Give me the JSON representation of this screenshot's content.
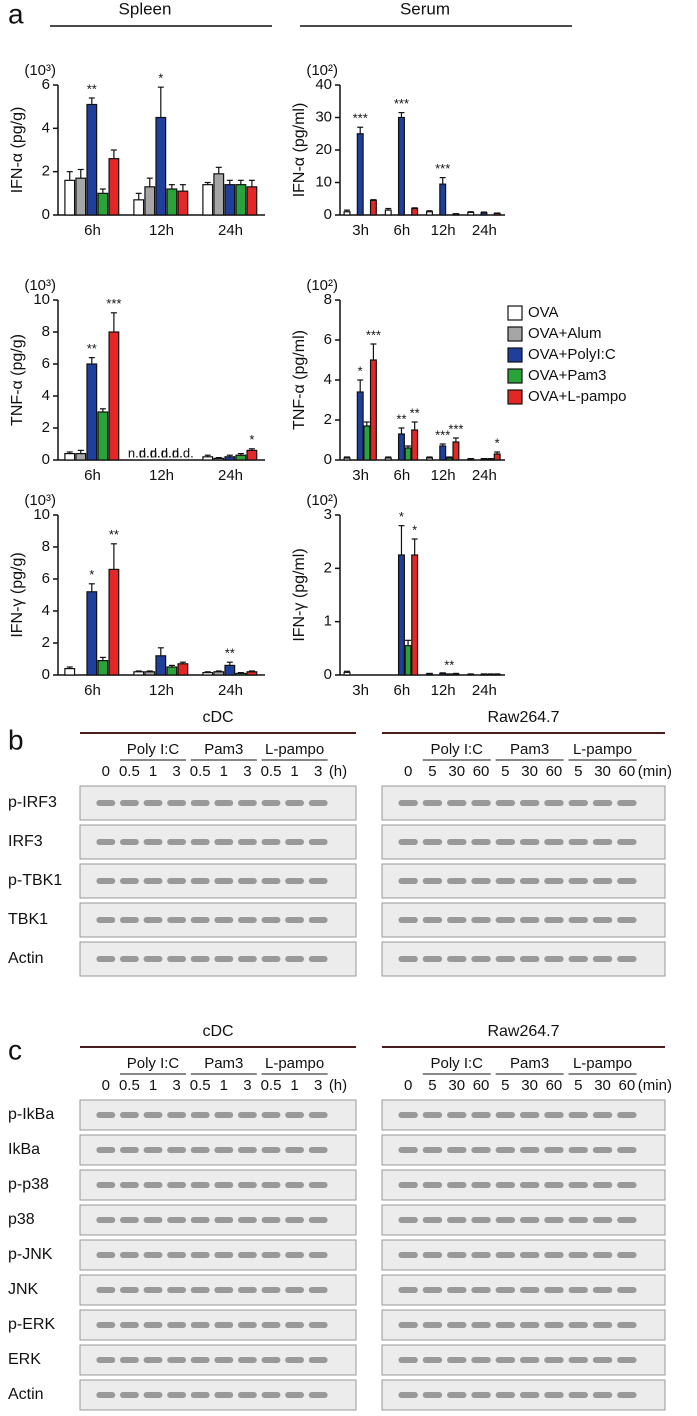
{
  "panel_labels": {
    "a": "a",
    "b": "b",
    "c": "c"
  },
  "headers": {
    "spleen": "Spleen",
    "serum": "Serum"
  },
  "chart_data": [
    {
      "type": "bar",
      "ylabel": "IFN-α (pg/g)",
      "multiplier": "(10³)",
      "categories": [
        "6h",
        "12h",
        "24h"
      ],
      "ylim": [
        0,
        6
      ],
      "yticks": [
        0,
        2,
        4,
        6
      ],
      "series": [
        {
          "name": "OVA",
          "color": "#ffffff",
          "values": [
            1.6,
            0.7,
            1.4
          ],
          "errors": [
            0.4,
            0.3,
            0.1
          ]
        },
        {
          "name": "OVA+Alum",
          "color": "#a6a6a6",
          "values": [
            1.7,
            1.3,
            1.9
          ],
          "errors": [
            0.4,
            0.4,
            0.3
          ]
        },
        {
          "name": "OVA+PolyI:C",
          "color": "#1f3f9a",
          "values": [
            5.1,
            4.5,
            1.4
          ],
          "errors": [
            0.3,
            1.4,
            0.2
          ]
        },
        {
          "name": "OVA+Pam3",
          "color": "#2aa33a",
          "values": [
            1.0,
            1.2,
            1.4
          ],
          "errors": [
            0.2,
            0.2,
            0.2
          ]
        },
        {
          "name": "OVA+L-pampo",
          "color": "#e32626",
          "values": [
            2.6,
            1.1,
            1.3
          ],
          "errors": [
            0.4,
            0.3,
            0.3
          ]
        }
      ],
      "annotations": [
        {
          "text": "**",
          "category": 0,
          "series": 2
        },
        {
          "text": "*",
          "category": 1,
          "series": 2
        }
      ]
    },
    {
      "type": "bar",
      "ylabel": "IFN-α (pg/ml)",
      "multiplier": "(10²)",
      "categories": [
        "3h",
        "6h",
        "12h",
        "24h"
      ],
      "ylim": [
        0,
        40
      ],
      "yticks": [
        0,
        10,
        20,
        30,
        40
      ],
      "series": [
        {
          "name": "OVA",
          "color": "#ffffff",
          "values": [
            1.0,
            1.5,
            1.0,
            0.8
          ],
          "errors": [
            0.5,
            0.5,
            0.3,
            0.2
          ]
        },
        {
          "name": "OVA+Alum",
          "color": "#a6a6a6",
          "values": [
            null,
            null,
            null,
            null
          ],
          "errors": [
            null,
            null,
            null,
            null
          ]
        },
        {
          "name": "OVA+PolyI:C",
          "color": "#1f3f9a",
          "values": [
            25,
            30,
            9.5,
            0.7
          ],
          "errors": [
            2,
            1.5,
            2,
            0.2
          ]
        },
        {
          "name": "OVA+Pam3",
          "color": "#2aa33a",
          "values": [
            null,
            null,
            null,
            null
          ],
          "errors": [
            null,
            null,
            null,
            null
          ]
        },
        {
          "name": "OVA+L-pampo",
          "color": "#e32626",
          "values": [
            4.5,
            2.0,
            0.3,
            0.5
          ],
          "errors": [
            0.2,
            0.2,
            0.1,
            0.1
          ]
        }
      ],
      "annotations": [
        {
          "text": "***",
          "category": 0,
          "series": 2
        },
        {
          "text": "***",
          "category": 1,
          "series": 2
        },
        {
          "text": "***",
          "category": 2,
          "series": 2
        }
      ]
    },
    {
      "type": "bar",
      "ylabel": "TNF-α (pg/g)",
      "multiplier": "(10³)",
      "categories": [
        "6h",
        "12h",
        "24h"
      ],
      "ylim": [
        0,
        10
      ],
      "yticks": [
        0,
        2,
        4,
        6,
        8,
        10
      ],
      "series": [
        {
          "name": "OVA",
          "color": "#ffffff",
          "values": [
            0.4,
            null,
            0.2
          ],
          "errors": [
            0.1,
            null,
            0.1
          ]
        },
        {
          "name": "OVA+Alum",
          "color": "#a6a6a6",
          "values": [
            0.4,
            null,
            0.1
          ],
          "errors": [
            0.2,
            null,
            0.05
          ]
        },
        {
          "name": "OVA+PolyI:C",
          "color": "#1f3f9a",
          "values": [
            6.0,
            null,
            0.2
          ],
          "errors": [
            0.4,
            null,
            0.1
          ]
        },
        {
          "name": "OVA+Pam3",
          "color": "#2aa33a",
          "values": [
            3.0,
            null,
            0.3
          ],
          "errors": [
            0.2,
            null,
            0.1
          ]
        },
        {
          "name": "OVA+L-pampo",
          "color": "#e32626",
          "values": [
            8.0,
            null,
            0.6
          ],
          "errors": [
            1.2,
            null,
            0.1
          ]
        }
      ],
      "annotations": [
        {
          "text": "**",
          "category": 0,
          "series": 2
        },
        {
          "text": "***",
          "category": 0,
          "series": 4
        },
        {
          "text": "n.d.",
          "category": 1,
          "series": 0
        },
        {
          "text": "n.d.",
          "category": 1,
          "series": 1
        },
        {
          "text": "n.d.",
          "category": 1,
          "series": 2
        },
        {
          "text": "n.d.",
          "category": 1,
          "series": 3
        },
        {
          "text": "n.d.",
          "category": 1,
          "series": 4
        },
        {
          "text": "*",
          "category": 2,
          "series": 4
        }
      ]
    },
    {
      "type": "bar",
      "ylabel": "TNF-α (pg/ml)",
      "multiplier": "(10²)",
      "categories": [
        "3h",
        "6h",
        "12h",
        "24h"
      ],
      "ylim": [
        0,
        8
      ],
      "yticks": [
        0,
        2,
        4,
        6,
        8
      ],
      "legend": "right",
      "series": [
        {
          "name": "OVA",
          "color": "#ffffff",
          "values": [
            0.1,
            0.1,
            0.1,
            0.05
          ],
          "errors": [
            0.05,
            0.05,
            0.05,
            0.02
          ]
        },
        {
          "name": "OVA+Alum",
          "color": "#a6a6a6",
          "values": [
            null,
            null,
            null,
            null
          ],
          "errors": [
            null,
            null,
            null,
            null
          ]
        },
        {
          "name": "OVA+PolyI:C",
          "color": "#1f3f9a",
          "values": [
            3.4,
            1.3,
            0.7,
            0.05
          ],
          "errors": [
            0.6,
            0.3,
            0.1,
            0.02
          ]
        },
        {
          "name": "OVA+Pam3",
          "color": "#2aa33a",
          "values": [
            1.7,
            0.6,
            0.1,
            0.05
          ],
          "errors": [
            0.2,
            0.1,
            0.05,
            0.02
          ]
        },
        {
          "name": "OVA+L-pampo",
          "color": "#e32626",
          "values": [
            5.0,
            1.5,
            0.9,
            0.3
          ],
          "errors": [
            0.8,
            0.4,
            0.2,
            0.1
          ]
        }
      ],
      "annotations": [
        {
          "text": "*",
          "category": 0,
          "series": 2
        },
        {
          "text": "***",
          "category": 0,
          "series": 4
        },
        {
          "text": "**",
          "category": 1,
          "series": 2
        },
        {
          "text": "**",
          "category": 1,
          "series": 4
        },
        {
          "text": "***",
          "category": 2,
          "series": 2
        },
        {
          "text": "***",
          "category": 2,
          "series": 4
        },
        {
          "text": "*",
          "category": 3,
          "series": 4
        }
      ]
    },
    {
      "type": "bar",
      "ylabel": "IFN-γ (pg/g)",
      "multiplier": "(10³)",
      "categories": [
        "6h",
        "12h",
        "24h"
      ],
      "ylim": [
        0,
        10
      ],
      "yticks": [
        0,
        2,
        4,
        6,
        8,
        10
      ],
      "series": [
        {
          "name": "OVA",
          "color": "#ffffff",
          "values": [
            0.4,
            0.2,
            0.15
          ],
          "errors": [
            0.1,
            0.05,
            0.05
          ]
        },
        {
          "name": "OVA+Alum",
          "color": "#a6a6a6",
          "values": [
            null,
            0.2,
            0.2
          ],
          "errors": [
            null,
            0.05,
            0.05
          ]
        },
        {
          "name": "OVA+PolyI:C",
          "color": "#1f3f9a",
          "values": [
            5.2,
            1.2,
            0.6
          ],
          "errors": [
            0.5,
            0.5,
            0.2
          ]
        },
        {
          "name": "OVA+Pam3",
          "color": "#2aa33a",
          "values": [
            0.9,
            0.5,
            0.1
          ],
          "errors": [
            0.2,
            0.1,
            0.05
          ]
        },
        {
          "name": "OVA+L-pampo",
          "color": "#e32626",
          "values": [
            6.6,
            0.7,
            0.2
          ],
          "errors": [
            1.6,
            0.1,
            0.05
          ]
        }
      ],
      "annotations": [
        {
          "text": "*",
          "category": 0,
          "series": 2
        },
        {
          "text": "**",
          "category": 0,
          "series": 4
        },
        {
          "text": "**",
          "category": 2,
          "series": 2
        }
      ]
    },
    {
      "type": "bar",
      "ylabel": "IFN-γ (pg/ml)",
      "multiplier": "(10²)",
      "categories": [
        "3h",
        "6h",
        "12h",
        "24h"
      ],
      "ylim": [
        0,
        3
      ],
      "yticks": [
        0,
        1,
        2,
        3
      ],
      "series": [
        {
          "name": "OVA",
          "color": "#ffffff",
          "values": [
            0.05,
            null,
            0.02,
            0.01
          ],
          "errors": [
            0.02,
            null,
            0.01,
            0.01
          ]
        },
        {
          "name": "OVA+Alum",
          "color": "#a6a6a6",
          "values": [
            null,
            null,
            null,
            null
          ],
          "errors": [
            null,
            null,
            null,
            null
          ]
        },
        {
          "name": "OVA+PolyI:C",
          "color": "#1f3f9a",
          "values": [
            null,
            2.25,
            0.03,
            0.01
          ],
          "errors": [
            null,
            0.55,
            0.01,
            0.01
          ]
        },
        {
          "name": "OVA+Pam3",
          "color": "#2aa33a",
          "values": [
            null,
            0.55,
            0.01,
            0.01
          ],
          "errors": [
            null,
            0.1,
            0.01,
            0.01
          ]
        },
        {
          "name": "OVA+L-pampo",
          "color": "#e32626",
          "values": [
            null,
            2.25,
            0.02,
            0.01
          ],
          "errors": [
            null,
            0.3,
            0.01,
            0.01
          ]
        }
      ],
      "annotations": [
        {
          "text": "*",
          "category": 1,
          "series": 2
        },
        {
          "text": "*",
          "category": 1,
          "series": 4
        },
        {
          "text": "**",
          "category": 2,
          "series": 3
        }
      ]
    }
  ],
  "blots": [
    {
      "panels": [
        {
          "title": "cDC",
          "groups": [
            "Poly I:C",
            "Pam3",
            "L-pampo"
          ],
          "lanes": [
            "0",
            "0.5",
            "1",
            "3",
            "0.5",
            "1",
            "3",
            "0.5",
            "1",
            "3"
          ],
          "unit": "(h)"
        },
        {
          "title": "Raw264.7",
          "groups": [
            "Poly I:C",
            "Pam3",
            "L-pampo"
          ],
          "lanes": [
            "0",
            "5",
            "30",
            "60",
            "5",
            "30",
            "60",
            "5",
            "30",
            "60"
          ],
          "unit": "(min)"
        }
      ],
      "rows": [
        "p-IRF3",
        "IRF3",
        "p-TBK1",
        "TBK1",
        "Actin"
      ]
    },
    {
      "panels": [
        {
          "title": "cDC",
          "groups": [
            "Poly I:C",
            "Pam3",
            "L-pampo"
          ],
          "lanes": [
            "0",
            "0.5",
            "1",
            "3",
            "0.5",
            "1",
            "3",
            "0.5",
            "1",
            "3"
          ],
          "unit": "(h)"
        },
        {
          "title": "Raw264.7",
          "groups": [
            "Poly I:C",
            "Pam3",
            "L-pampo"
          ],
          "lanes": [
            "0",
            "5",
            "30",
            "60",
            "5",
            "30",
            "60",
            "5",
            "30",
            "60"
          ],
          "unit": "(min)"
        }
      ],
      "rows": [
        "p-IkBa",
        "IkBa",
        "p-p38",
        "p38",
        "p-JNK",
        "JNK",
        "p-ERK",
        "ERK",
        "Actin"
      ]
    }
  ]
}
